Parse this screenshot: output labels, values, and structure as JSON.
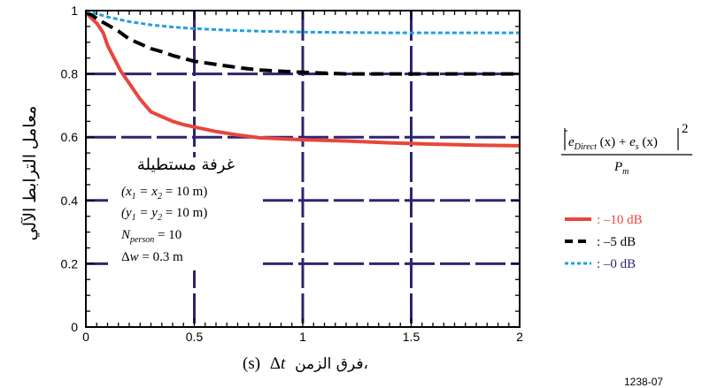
{
  "chart_data": {
    "type": "line",
    "ylabel": "معامل الترابط الآلي",
    "xlabel": "فرق الزمن، Δt (s)",
    "xlabel_parts": {
      "arabic": "فرق الزمن،",
      "delta": "Δ",
      "var": "t",
      "unit": " (s)"
    },
    "xlim": [
      0,
      2
    ],
    "ylim": [
      0,
      1
    ],
    "x_ticks": [
      {
        "v": 0,
        "label": "0"
      },
      {
        "v": 0.5,
        "label": "0.5"
      },
      {
        "v": 1,
        "label": "1"
      },
      {
        "v": 1.5,
        "label": "1.5"
      },
      {
        "v": 2,
        "label": "2"
      }
    ],
    "y_ticks": [
      {
        "v": 0,
        "label": "0"
      },
      {
        "v": 0.2,
        "label": "0.2"
      },
      {
        "v": 0.4,
        "label": "0.4"
      },
      {
        "v": 0.6,
        "label": "0.6"
      },
      {
        "v": 0.8,
        "label": "0.8"
      },
      {
        "v": 1,
        "label": "1"
      }
    ],
    "grid": true,
    "series": [
      {
        "name": ": –10 dB",
        "color": "#e8463c",
        "style": "solid",
        "x": [
          0,
          0.02,
          0.05,
          0.08,
          0.1,
          0.13,
          0.16,
          0.2,
          0.25,
          0.3,
          0.35,
          0.4,
          0.45,
          0.5,
          0.6,
          0.7,
          0.8,
          1.0,
          1.2,
          1.4,
          1.6,
          1.8,
          2.0
        ],
        "y": [
          0.995,
          0.98,
          0.96,
          0.93,
          0.89,
          0.85,
          0.81,
          0.77,
          0.72,
          0.68,
          0.665,
          0.65,
          0.64,
          0.632,
          0.618,
          0.607,
          0.598,
          0.592,
          0.588,
          0.582,
          0.578,
          0.575,
          0.573
        ]
      },
      {
        "name": ": –5 dB",
        "color": "#000000",
        "style": "dashed",
        "x": [
          0,
          0.03,
          0.06,
          0.1,
          0.15,
          0.2,
          0.25,
          0.3,
          0.35,
          0.4,
          0.5,
          0.6,
          0.7,
          0.8,
          1.0,
          1.2,
          1.4,
          1.6,
          1.8,
          2.0
        ],
        "y": [
          0.995,
          0.985,
          0.97,
          0.955,
          0.935,
          0.91,
          0.895,
          0.88,
          0.87,
          0.858,
          0.84,
          0.83,
          0.82,
          0.812,
          0.805,
          0.8,
          0.8,
          0.8,
          0.8,
          0.8
        ]
      },
      {
        "name": ": –0 dB",
        "color": "#1fa0e0",
        "style": "dotted",
        "x": [
          0,
          0.05,
          0.1,
          0.2,
          0.3,
          0.4,
          0.5,
          0.6,
          0.7,
          0.8,
          1.0,
          1.2,
          1.4,
          1.6,
          1.8,
          2.0
        ],
        "y": [
          1.0,
          0.99,
          0.98,
          0.965,
          0.955,
          0.948,
          0.943,
          0.94,
          0.937,
          0.935,
          0.932,
          0.931,
          0.93,
          0.93,
          0.93,
          0.93
        ]
      }
    ],
    "annotation": {
      "title": "غرفة مستطيلة",
      "lines": [
        "(x1 = x2 = 10 m)",
        "(y1 = y2 = 10 m)",
        "Nperson = 10",
        "Δw = 0.3 m"
      ]
    },
    "formula": {
      "numerator": "|eDirect(x) + es(x)|²",
      "denominator": "Pm"
    },
    "figure_ref": "1238-07"
  }
}
